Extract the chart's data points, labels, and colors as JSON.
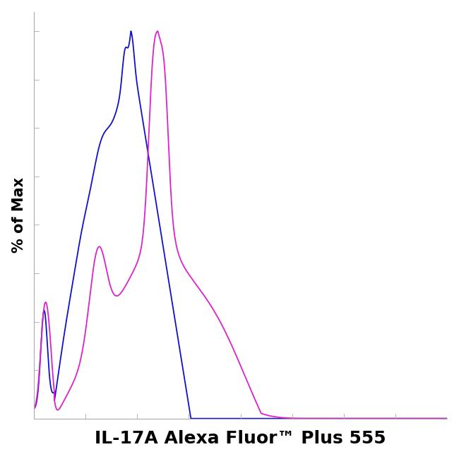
{
  "xlabel": "IL-17A Alexa Fluor™ Plus 555",
  "ylabel": "% of Max",
  "xlabel_fontsize": 18,
  "ylabel_fontsize": 15,
  "blue_color": "#1010cc",
  "magenta_color": "#dd22cc",
  "background_color": "#ffffff",
  "xlim": [
    0,
    1
  ],
  "ylim": [
    0,
    1.05
  ],
  "fig_width": 6.5,
  "fig_height": 6.5,
  "dpi": 100
}
